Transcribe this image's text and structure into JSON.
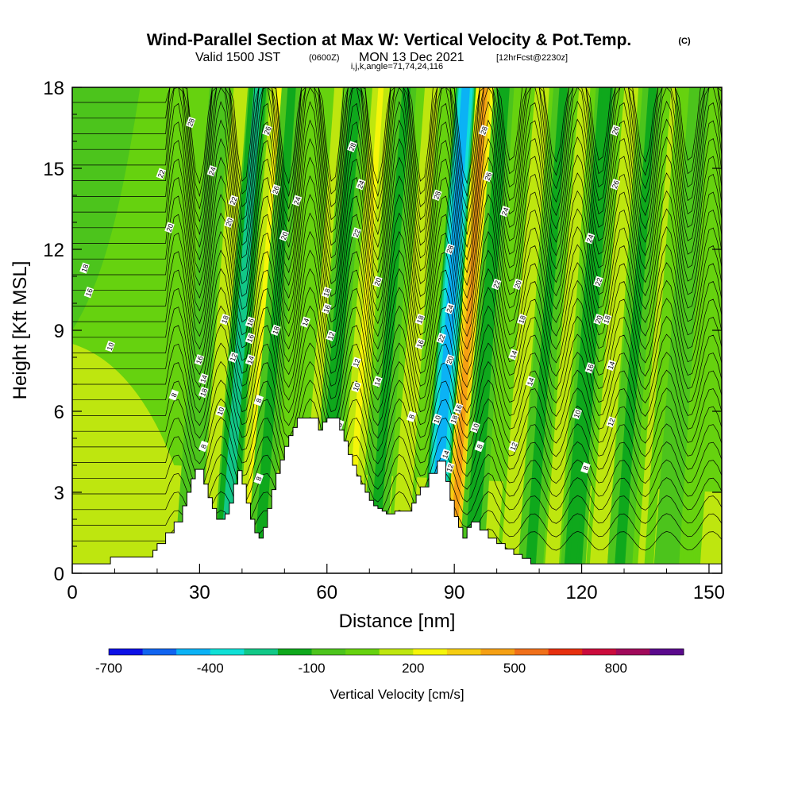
{
  "title": {
    "main": "Wind-Parallel Section at Max W: Vertical Velocity & Pot.Temp.",
    "copyright": "(C)",
    "valid_prefix": "Valid 1500 JST",
    "valid_utc": "(0600Z)",
    "valid_date": "MON 13 Dec 2021",
    "forecast": "[12hrFcst@2230z]",
    "indices": "i,j,k,angle=71,74,24,116"
  },
  "chart_data": {
    "type": "heatmap",
    "xlabel": "Distance [nm]",
    "ylabel": "Height [Kft MSL]",
    "xlim": [
      0,
      153
    ],
    "ylim": [
      0,
      18
    ],
    "xticks": [
      0,
      30,
      60,
      90,
      120,
      150
    ],
    "yticks": [
      0,
      3,
      6,
      9,
      12,
      15,
      18
    ],
    "xtick_labels": [
      "0",
      "30",
      "60",
      "90",
      "120",
      "150"
    ],
    "ytick_labels": [
      "0",
      "3",
      "6",
      "9",
      "12",
      "15",
      "18"
    ],
    "terrain": [
      [
        0,
        0.35
      ],
      [
        8,
        0.35
      ],
      [
        9,
        0.6
      ],
      [
        18,
        0.6
      ],
      [
        19,
        0.85
      ],
      [
        20,
        1.1
      ],
      [
        22,
        1.5
      ],
      [
        24,
        1.9
      ],
      [
        26,
        2.5
      ],
      [
        27,
        3.0
      ],
      [
        28,
        3.5
      ],
      [
        29,
        3.85
      ],
      [
        30,
        3.85
      ],
      [
        31,
        3.3
      ],
      [
        32,
        2.8
      ],
      [
        33,
        2.4
      ],
      [
        34,
        2.0
      ],
      [
        35,
        2.0
      ],
      [
        36,
        2.2
      ],
      [
        37,
        2.6
      ],
      [
        38,
        3.3
      ],
      [
        39,
        3.8
      ],
      [
        40,
        3.3
      ],
      [
        41,
        2.6
      ],
      [
        42,
        2.0
      ],
      [
        43,
        1.5
      ],
      [
        44,
        1.3
      ],
      [
        45,
        1.7
      ],
      [
        46,
        2.4
      ],
      [
        47,
        3.1
      ],
      [
        48,
        3.7
      ],
      [
        49,
        4.2
      ],
      [
        50,
        4.7
      ],
      [
        51,
        5.1
      ],
      [
        52,
        5.4
      ],
      [
        53,
        5.75
      ],
      [
        57,
        5.75
      ],
      [
        58,
        5.3
      ],
      [
        59,
        5.6
      ],
      [
        60,
        5.75
      ],
      [
        62,
        5.75
      ],
      [
        63,
        5.3
      ],
      [
        64,
        4.9
      ],
      [
        65,
        4.4
      ],
      [
        66,
        4.0
      ],
      [
        67,
        3.6
      ],
      [
        68,
        3.3
      ],
      [
        69,
        3.0
      ],
      [
        70,
        2.7
      ],
      [
        71,
        2.5
      ],
      [
        72,
        2.4
      ],
      [
        73,
        2.3
      ],
      [
        74,
        2.2
      ],
      [
        76,
        2.3
      ],
      [
        79,
        2.3
      ],
      [
        80,
        2.6
      ],
      [
        81,
        2.9
      ],
      [
        82,
        3.2
      ],
      [
        84,
        3.7
      ],
      [
        86,
        4.15
      ],
      [
        87,
        4.15
      ],
      [
        88,
        3.4
      ],
      [
        89,
        2.7
      ],
      [
        90,
        2.1
      ],
      [
        91,
        1.7
      ],
      [
        92,
        1.3
      ],
      [
        93,
        1.7
      ],
      [
        94,
        1.9
      ],
      [
        96,
        1.6
      ],
      [
        98,
        1.3
      ],
      [
        100,
        1.1
      ],
      [
        102,
        0.9
      ],
      [
        104,
        0.7
      ],
      [
        106,
        0.55
      ],
      [
        108,
        0.35
      ],
      [
        153,
        0.35
      ]
    ],
    "updraft_bands": [
      {
        "x": 35,
        "w": 160
      },
      {
        "x": 44,
        "w": 200
      },
      {
        "x": 58,
        "w": 120
      },
      {
        "x": 68,
        "w": 210
      },
      {
        "x": 80,
        "w": 160
      },
      {
        "x": 92.5,
        "w": 420
      },
      {
        "x": 106,
        "w": 180
      },
      {
        "x": 116,
        "w": 140
      },
      {
        "x": 127,
        "w": 190
      },
      {
        "x": 137,
        "w": 110
      },
      {
        "x": 148,
        "w": 90
      }
    ],
    "downdraft_bands": [
      {
        "x": 39,
        "w": -260
      },
      {
        "x": 47,
        "w": -130
      },
      {
        "x": 62,
        "w": -150
      },
      {
        "x": 74,
        "w": -120
      },
      {
        "x": 88,
        "w": -500
      },
      {
        "x": 97,
        "w": -160
      },
      {
        "x": 111,
        "w": -120
      },
      {
        "x": 121,
        "w": -170
      },
      {
        "x": 132,
        "w": -120
      },
      {
        "x": 143,
        "w": -90
      },
      {
        "x": 30,
        "w": -90
      }
    ],
    "theta_contours_K": [
      8,
      10,
      12,
      14,
      16,
      18,
      20,
      22,
      24,
      26,
      28
    ],
    "contour_labels": [
      "28",
      "24",
      "22",
      "20",
      "18",
      "16",
      "14",
      "12",
      "10",
      "8",
      "26"
    ],
    "colorbar": {
      "label": "Vertical Velocity [cm/s]",
      "tick_values": [
        -700,
        -400,
        -100,
        200,
        500,
        800
      ],
      "tick_labels": [
        "-700",
        "-400",
        "-100",
        "200",
        "500",
        "800"
      ],
      "bins": [
        -700,
        -600,
        -500,
        -400,
        -300,
        -200,
        -100,
        0,
        100,
        200,
        300,
        400,
        500,
        600,
        700,
        800,
        900
      ],
      "colors": [
        "#0d10e6",
        "#1164f0",
        "#0bb2f5",
        "#10e0d6",
        "#12c887",
        "#0fa81c",
        "#4cc41c",
        "#66d20f",
        "#bee60f",
        "#f5f50a",
        "#f5cd12",
        "#f5a014",
        "#f0701a",
        "#e6300f",
        "#cb0b3c",
        "#a00a5a",
        "#5a0a8c"
      ]
    }
  }
}
